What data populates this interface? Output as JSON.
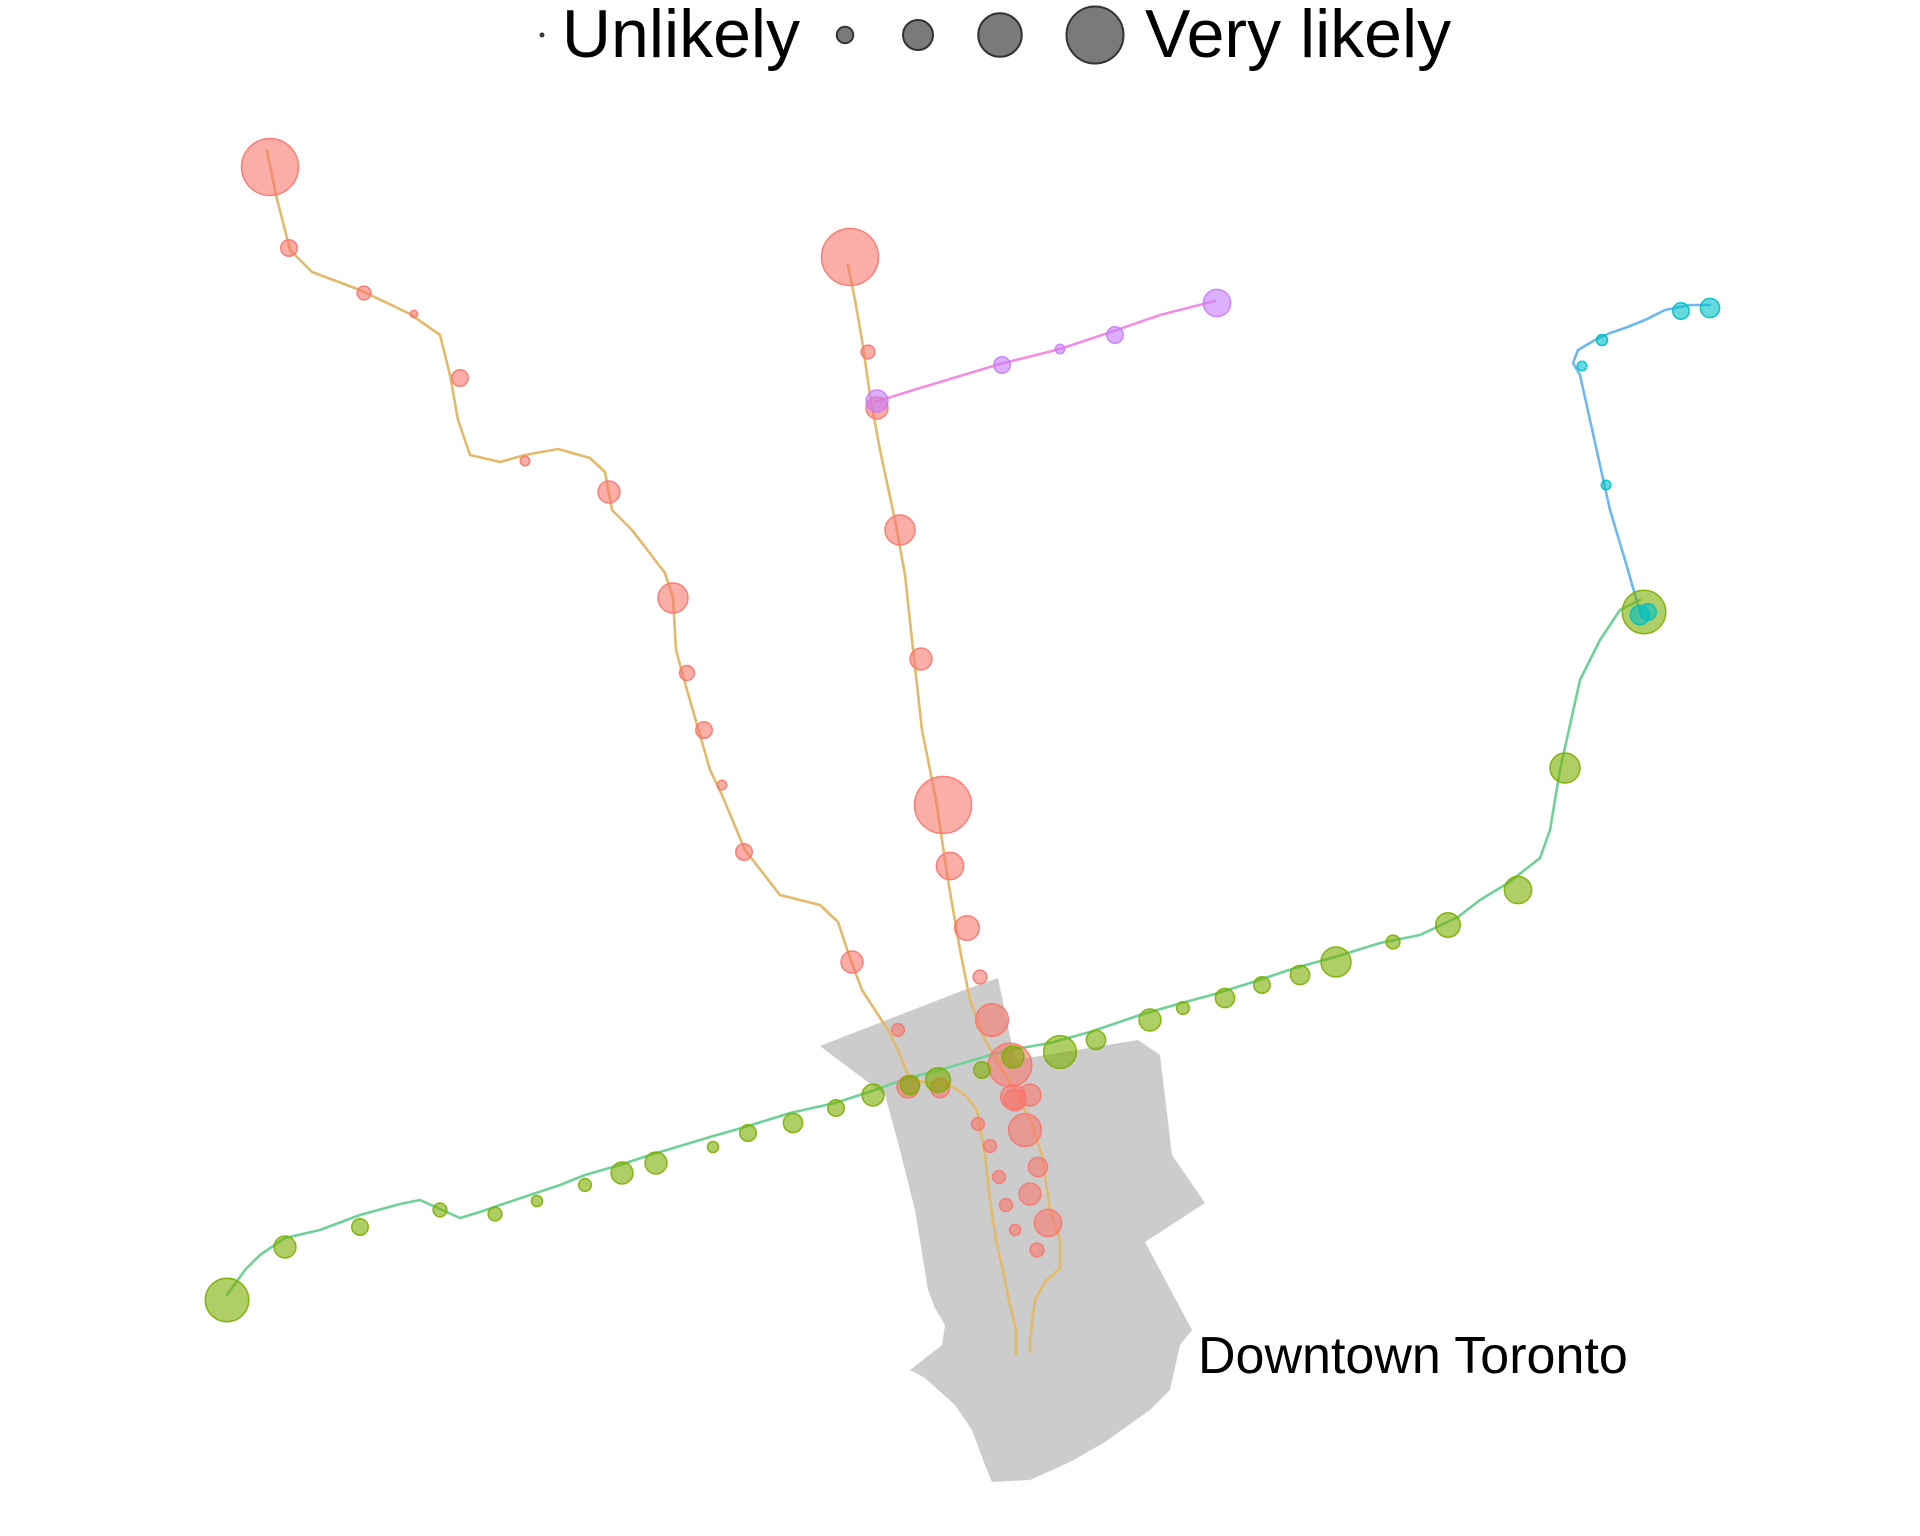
{
  "legend": {
    "low_label": "Unlikely",
    "high_label": "Very likely",
    "levels": [
      0,
      0.25,
      0.5,
      0.75,
      1
    ]
  },
  "region_label": "Downtown Toronto",
  "colors": {
    "downtown_fill": "#cccccc",
    "line1_route": "#e3b96a",
    "line1_station": "#f8766d",
    "line2_route": "#6fd197",
    "line2_station": "#7cae00",
    "line3_route": "#6cb8f0",
    "line3_station": "#00bfc4",
    "line4_route": "#f08fe0",
    "line4_station": "#c77cff"
  },
  "lines": [
    {
      "id": "line-1",
      "color_key": "line1",
      "stations_west_branch": [
        1,
        0.25,
        0.2,
        0.08,
        0.25,
        0.12,
        0.35,
        0.5,
        0.22,
        0.25,
        0.12,
        0.25,
        0.35,
        0.18,
        0.35
      ],
      "stations_east_branch": [
        1,
        0.2,
        0.35,
        0.5,
        0.35,
        1,
        0.45,
        0.4,
        0.2,
        0.55,
        0.75,
        0.4,
        0.35
      ],
      "stations_loop": [
        0.18,
        0.18,
        0.18,
        0.15,
        0.2,
        0.45,
        0.35,
        0.3,
        0.55,
        0.35,
        0.3,
        0.18
      ]
    },
    {
      "id": "line-2",
      "color_key": "line2",
      "stations": [
        0.75,
        0.35,
        0.25,
        0.2,
        0.2,
        0.15,
        0.18,
        0.35,
        0.35,
        0.15,
        0.25,
        0.3,
        0.25,
        0.35,
        0.3,
        0.4,
        0.25,
        0.35,
        0.55,
        0.3,
        0.35,
        0.18,
        0.3,
        0.25,
        0.3,
        0.5,
        0.2,
        0.4,
        0.45,
        0.5,
        0.75
      ]
    },
    {
      "id": "line-3",
      "color_key": "line3",
      "stations": [
        0.3,
        0.25,
        0.15,
        0.12,
        0.12,
        0.25,
        0.3
      ]
    },
    {
      "id": "line-4",
      "color_key": "line4",
      "stations": [
        0.45,
        0.25,
        0.12,
        0.25,
        0.35
      ]
    }
  ]
}
